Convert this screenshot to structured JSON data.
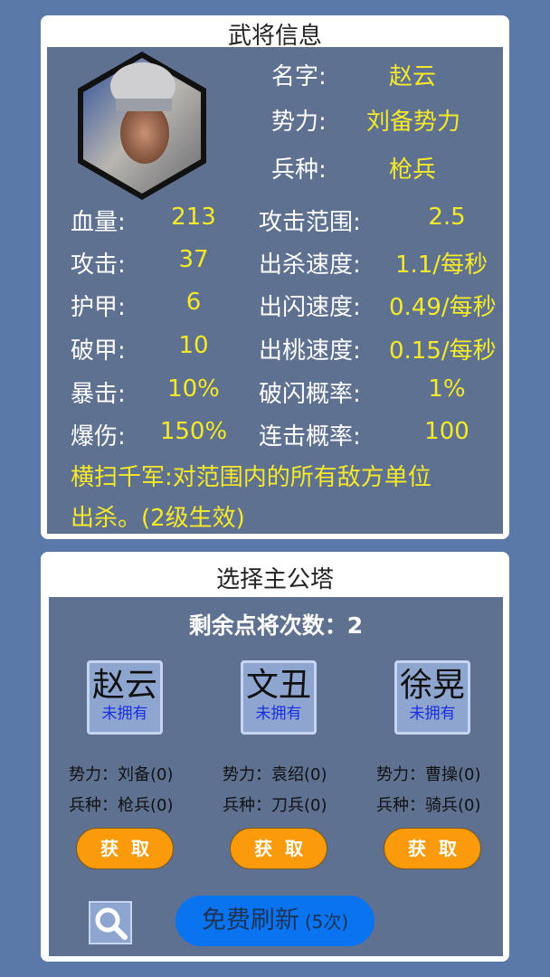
{
  "general_info": {
    "title": "武将信息",
    "portrait": "zhao-yun-portrait",
    "name_label": "名字:",
    "name": "赵云",
    "faction_label": "势力:",
    "faction": "刘备势力",
    "troop_label": "兵种:",
    "troop": "枪兵",
    "stats_left": [
      {
        "label": "血量:",
        "value": "213"
      },
      {
        "label": "攻击:",
        "value": "37"
      },
      {
        "label": "护甲:",
        "value": "6"
      },
      {
        "label": "破甲:",
        "value": "10"
      },
      {
        "label": "暴击:",
        "value": "10%"
      },
      {
        "label": "爆伤:",
        "value": "150%"
      }
    ],
    "stats_right": [
      {
        "label": "攻击范围:",
        "value": "2.5"
      },
      {
        "label": "出杀速度:",
        "value": "1.1/每秒"
      },
      {
        "label": "出闪速度:",
        "value": "0.49/每秒"
      },
      {
        "label": "出桃速度:",
        "value": "0.15/每秒"
      },
      {
        "label": "破闪概率:",
        "value": "1%"
      },
      {
        "label": "连击概率:",
        "value": "100"
      }
    ],
    "skill_line1": "横扫千军:对范围内的所有敌方单位",
    "skill_line2": "出杀。(2级生效)"
  },
  "select_tower": {
    "title": "选择主公塔",
    "remaining": "剩余点将次数：2",
    "heroes": [
      {
        "name": "赵云",
        "status": "未拥有",
        "faction": "势力：刘备(0)",
        "troop": "兵种：枪兵(0)",
        "button": "获取"
      },
      {
        "name": "文丑",
        "status": "未拥有",
        "faction": "势力：袁绍(0)",
        "troop": "兵种：刀兵(0)",
        "button": "获取"
      },
      {
        "name": "徐晃",
        "status": "未拥有",
        "faction": "势力：曹操(0)",
        "troop": "兵种：骑兵(0)",
        "button": "获取"
      }
    ],
    "refresh_label": "免费刷新",
    "refresh_count": "(5次)",
    "search_icon": "magnifier"
  },
  "colors": {
    "background": "#5b79a8",
    "panel": "#5e7191",
    "value": "#f5e92a",
    "get_button": "#fb9a0a",
    "refresh_button": "#0a74f0"
  }
}
